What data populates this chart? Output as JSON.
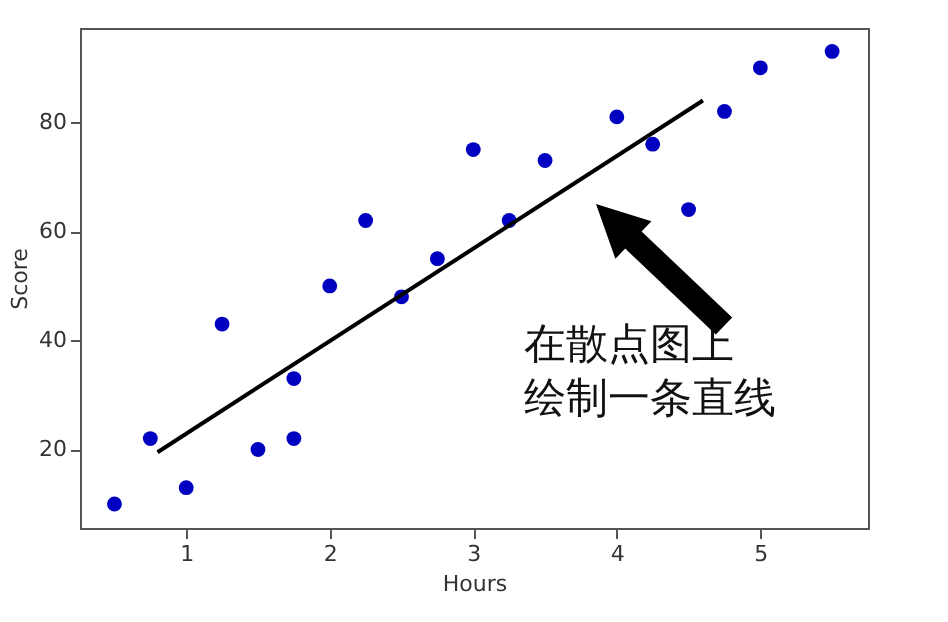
{
  "chart_data": {
    "type": "scatter",
    "xlabel": "Hours",
    "ylabel": "Score",
    "x": [
      0.5,
      0.75,
      1,
      1.25,
      1.5,
      1.75,
      1.75,
      2,
      2.25,
      2.5,
      2.75,
      3,
      3.25,
      3.5,
      4,
      4.25,
      4.5,
      4.75,
      5,
      5.5
    ],
    "series": [
      {
        "color": "#0000c0",
        "marker": "circle",
        "values": [
          10,
          22,
          13,
          43,
          20,
          22,
          33,
          50,
          62,
          48,
          55,
          75,
          62,
          73,
          81,
          76,
          64,
          82,
          90,
          93
        ]
      },
      {
        "type": "line",
        "marker": "none",
        "color": "#000000",
        "x": [
          0.8,
          4.6
        ],
        "values": [
          19.5,
          84
        ]
      }
    ],
    "xlim": [
      0.26,
      5.75
    ],
    "ylim": [
      5.6,
      97.3
    ],
    "xticks": [
      1,
      2,
      3,
      4,
      5
    ],
    "yticks": [
      20,
      40,
      60,
      80
    ],
    "grid": false,
    "line_style": "solid",
    "annotations": [
      "在散点图上绘制一条直线"
    ]
  }
}
